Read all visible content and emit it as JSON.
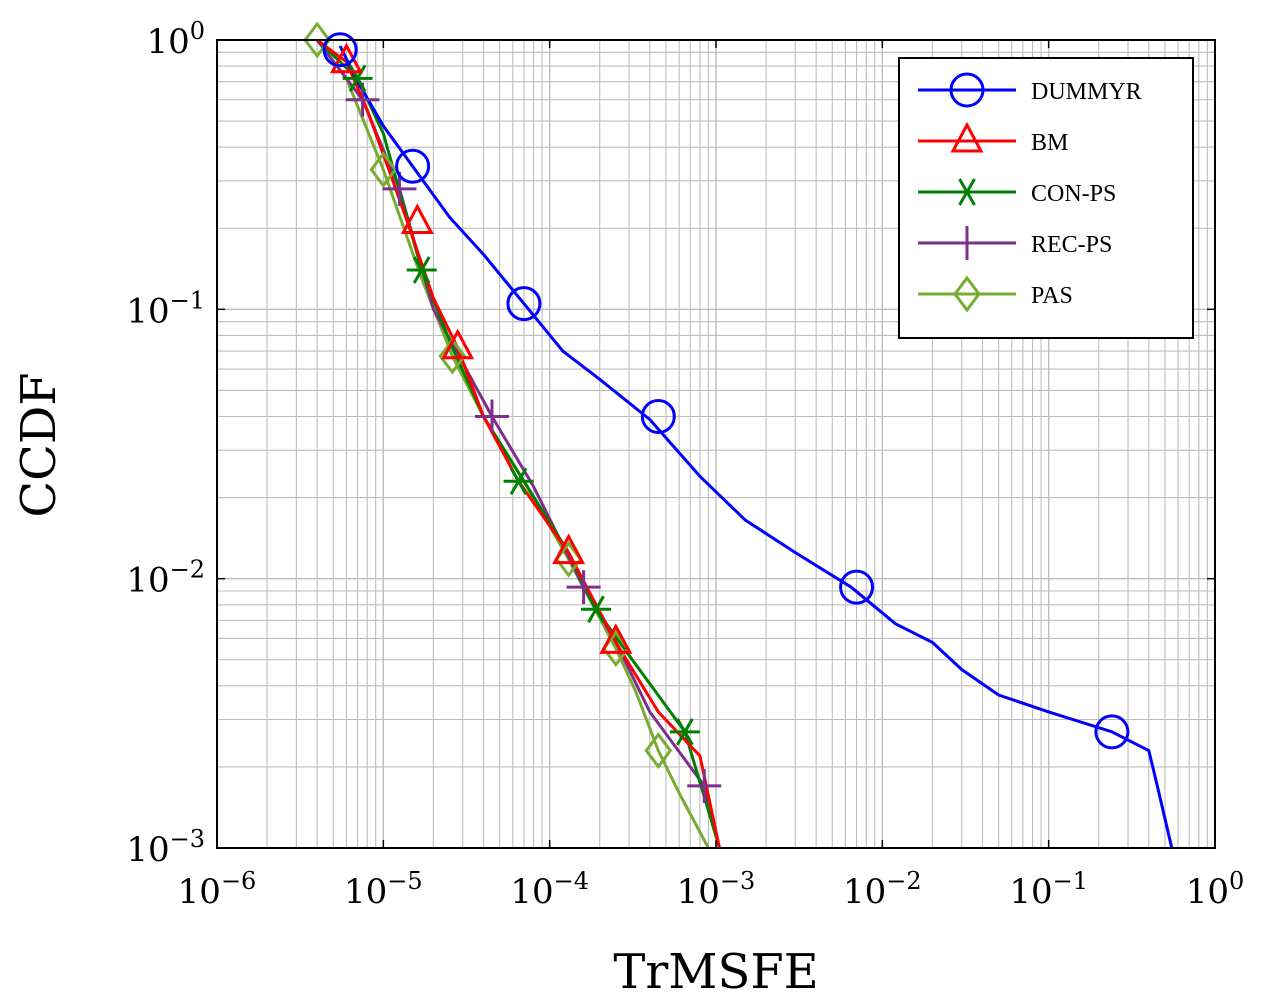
{
  "chart_data": {
    "type": "line",
    "xscale": "log",
    "yscale": "log",
    "xlabel": "TrMSFE",
    "ylabel": "CCDF",
    "xlim": [
      1e-06,
      1
    ],
    "ylim": [
      0.001,
      1
    ],
    "grid": "major-and-minor",
    "legend_position": "top-right",
    "x_ticks": [
      {
        "value": 1e-06,
        "base": "10",
        "exp": "−6"
      },
      {
        "value": 1e-05,
        "base": "10",
        "exp": "−5"
      },
      {
        "value": 0.0001,
        "base": "10",
        "exp": "−4"
      },
      {
        "value": 0.001,
        "base": "10",
        "exp": "−3"
      },
      {
        "value": 0.01,
        "base": "10",
        "exp": "−2"
      },
      {
        "value": 0.1,
        "base": "10",
        "exp": "−1"
      },
      {
        "value": 1,
        "base": "10",
        "exp": "0"
      }
    ],
    "y_ticks": [
      {
        "value": 0.001,
        "base": "10",
        "exp": "−3"
      },
      {
        "value": 0.01,
        "base": "10",
        "exp": "−2"
      },
      {
        "value": 0.1,
        "base": "10",
        "exp": "−1"
      },
      {
        "value": 1,
        "base": "10",
        "exp": "0"
      }
    ],
    "series": [
      {
        "name": "DUMMYR",
        "color": "#0000ff",
        "marker": "circle",
        "x": [
          5.5e-06,
          7e-06,
          1e-05,
          1.5e-05,
          2.5e-05,
          4e-05,
          7e-05,
          0.00012,
          0.0002,
          0.0004,
          0.0008,
          0.0015,
          0.003,
          0.0065,
          0.012,
          0.02,
          0.03,
          0.05,
          0.1,
          0.24,
          0.4,
          0.45,
          0.55
        ],
        "y": [
          0.95,
          0.7,
          0.48,
          0.34,
          0.22,
          0.16,
          0.105,
          0.07,
          0.055,
          0.039,
          0.024,
          0.0165,
          0.0125,
          0.0093,
          0.0068,
          0.0058,
          0.0046,
          0.0037,
          0.0032,
          0.0027,
          0.0023,
          0.0017,
          0.001
        ]
      },
      {
        "name": "BM",
        "color": "#ff0000",
        "marker": "triangle",
        "x": [
          4e-06,
          6e-06,
          8e-06,
          1.1e-05,
          1.4e-05,
          2e-05,
          2.8e-05,
          4e-05,
          6.5e-05,
          0.00013,
          0.00025,
          0.00045,
          0.0008,
          0.00105
        ],
        "y": [
          1,
          0.83,
          0.55,
          0.32,
          0.21,
          0.11,
          0.072,
          0.04,
          0.023,
          0.0125,
          0.0058,
          0.0032,
          0.0022,
          0.001
        ]
      },
      {
        "name": "CON-PS",
        "color": "#008000",
        "marker": "asterisk",
        "x": [
          4e-06,
          7e-06,
          1e-05,
          1.7e-05,
          2.6e-05,
          4e-05,
          7e-05,
          0.00013,
          0.00019,
          0.0003,
          0.00065,
          0.00105
        ],
        "y": [
          1,
          0.72,
          0.45,
          0.14,
          0.072,
          0.04,
          0.023,
          0.0125,
          0.0077,
          0.0052,
          0.0027,
          0.001
        ]
      },
      {
        "name": "REC-PS",
        "color": "#7e2f8e",
        "marker": "plus",
        "x": [
          4e-06,
          7.5e-06,
          1.25e-05,
          2e-05,
          4.5e-05,
          8e-05,
          0.00016,
          0.00025,
          0.0004,
          0.00085,
          0.00105
        ],
        "y": [
          1,
          0.6,
          0.28,
          0.1,
          0.04,
          0.022,
          0.0093,
          0.0058,
          0.0032,
          0.0017,
          0.001
        ]
      },
      {
        "name": "PAS",
        "color": "#77ac30",
        "marker": "diamond",
        "x": [
          4e-06,
          6e-06,
          1e-05,
          1.7e-05,
          2.6e-05,
          4e-05,
          7e-05,
          0.00013,
          0.00025,
          0.00033,
          0.00045,
          0.0006,
          0.0009
        ],
        "y": [
          1,
          0.72,
          0.33,
          0.13,
          0.067,
          0.04,
          0.023,
          0.0118,
          0.0055,
          0.0038,
          0.0023,
          0.0016,
          0.001
        ]
      }
    ],
    "markers": {
      "DUMMYR": [
        [
          5.5e-06,
          0.92
        ],
        [
          1.5e-05,
          0.34
        ],
        [
          7e-05,
          0.105
        ],
        [
          0.00045,
          0.04
        ],
        [
          0.007,
          0.0093
        ],
        [
          0.24,
          0.0027
        ]
      ],
      "BM": [
        [
          6e-06,
          0.83
        ],
        [
          1.6e-05,
          0.21
        ],
        [
          2.8e-05,
          0.072
        ],
        [
          0.00013,
          0.0125
        ],
        [
          0.00025,
          0.0058
        ]
      ],
      "CON-PS": [
        [
          7e-06,
          0.72
        ],
        [
          1.7e-05,
          0.14
        ],
        [
          6.5e-05,
          0.023
        ],
        [
          0.00019,
          0.0077
        ],
        [
          0.00065,
          0.0027
        ]
      ],
      "REC-PS": [
        [
          7.5e-06,
          0.6
        ],
        [
          1.25e-05,
          0.28
        ],
        [
          4.5e-05,
          0.04
        ],
        [
          0.00016,
          0.0093
        ],
        [
          0.00085,
          0.0017
        ]
      ],
      "PAS": [
        [
          4e-06,
          1.0
        ],
        [
          1e-05,
          0.33
        ],
        [
          2.6e-05,
          0.067
        ],
        [
          0.00013,
          0.0118
        ],
        [
          0.00025,
          0.0055
        ],
        [
          0.00045,
          0.0023
        ]
      ]
    }
  }
}
